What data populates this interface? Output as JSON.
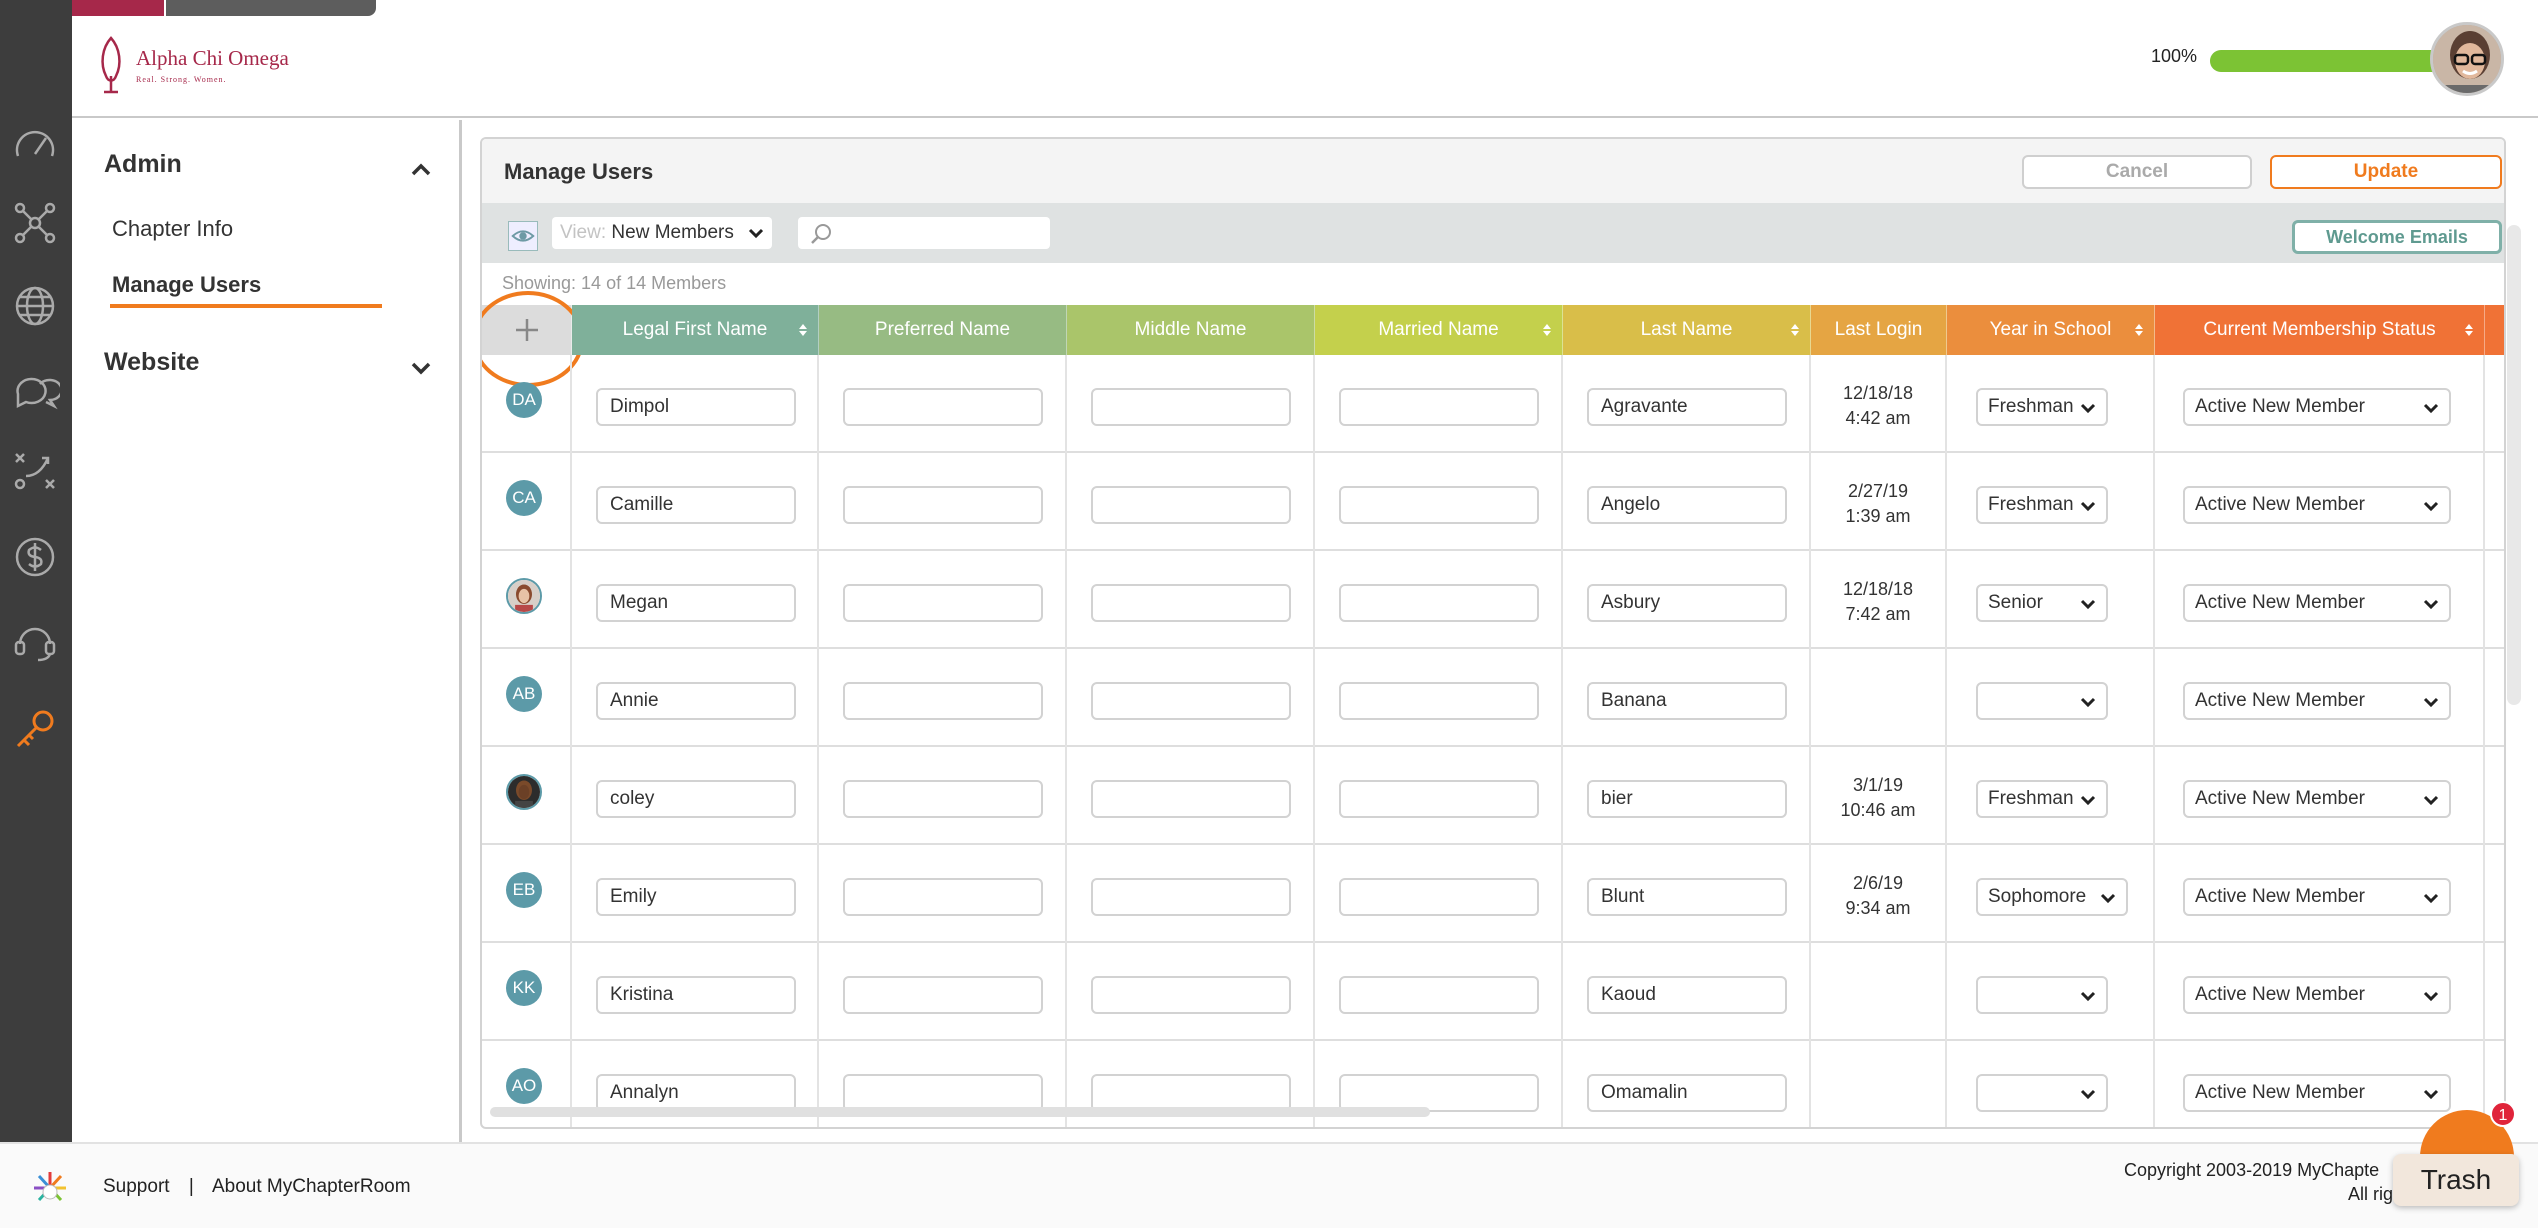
{
  "brand": {
    "name": "Alpha Chi Omega",
    "tagline": "Real. Strong. Women.",
    "primary_color": "#a6284a",
    "accent_color": "#f07b1e"
  },
  "header": {
    "progress_label": "100%",
    "progress_value": 1.0
  },
  "rail": {
    "icons": [
      "dashboard-icon",
      "network-icon",
      "globe-icon",
      "chat-icon",
      "strategy-icon",
      "dollar-icon",
      "support-icon",
      "key-icon"
    ],
    "active": "key-icon"
  },
  "sidebar": {
    "admin_label": "Admin",
    "admin_items": [
      {
        "label": "Chapter Info"
      },
      {
        "label": "Manage Users"
      }
    ],
    "website_label": "Website"
  },
  "panel": {
    "title": "Manage Users",
    "cancel_label": "Cancel",
    "update_label": "Update",
    "view_prefix": "View:",
    "view_value": "New Members",
    "search_value": "",
    "welcome_label": "Welcome Emails",
    "showing": "Showing: 14 of 14 Members"
  },
  "table": {
    "columns": [
      {
        "label": "Legal First Name",
        "color": "#7fb09a"
      },
      {
        "label": "Preferred Name",
        "color": "#97bb83"
      },
      {
        "label": "Middle Name",
        "color": "#aac56a"
      },
      {
        "label": "Married Name",
        "color": "#c4d04c"
      },
      {
        "label": "Last Name",
        "color": "#d9be49"
      },
      {
        "label": "Last Login",
        "color": "#e5a543"
      },
      {
        "label": "Year in School",
        "color": "#eb8e3d"
      },
      {
        "label": "Current Membership Status",
        "color": "#f07236"
      }
    ],
    "rows": [
      {
        "initials": "DA",
        "first": "Dimpol",
        "last": "Agravante",
        "login_date": "12/18/18",
        "login_time": "4:42 am",
        "year": "Freshman",
        "status": "Active New Member"
      },
      {
        "initials": "CA",
        "first": "Camille",
        "last": "Angelo",
        "login_date": "2/27/19",
        "login_time": "1:39 am",
        "year": "Freshman",
        "status": "Active New Member"
      },
      {
        "initials": "",
        "first": "Megan",
        "last": "Asbury",
        "login_date": "12/18/18",
        "login_time": "7:42 am",
        "year": "Senior",
        "status": "Active New Member"
      },
      {
        "initials": "AB",
        "first": "Annie",
        "last": "Banana",
        "login_date": "",
        "login_time": "",
        "year": "",
        "status": "Active New Member"
      },
      {
        "initials": "",
        "first": "coley",
        "last": "bier",
        "login_date": "3/1/19",
        "login_time": "10:46 am",
        "year": "Freshman",
        "status": "Active New Member"
      },
      {
        "initials": "EB",
        "first": "Emily",
        "last": "Blunt",
        "login_date": "2/6/19",
        "login_time": "9:34 am",
        "year": "Sophomore",
        "status": "Active New Member"
      },
      {
        "initials": "KK",
        "first": "Kristina",
        "last": "Kaoud",
        "login_date": "",
        "login_time": "",
        "year": "",
        "status": "Active New Member"
      },
      {
        "initials": "AO",
        "first": "Annalyn",
        "last": "Omamalin",
        "login_date": "",
        "login_time": "",
        "year": "",
        "status": "Active New Member"
      }
    ]
  },
  "footer": {
    "support": "Support",
    "separator": "|",
    "about": "About MyChapterRoom",
    "copyright": "Copyright 2003-2019 MyChapte",
    "rights": "All rig"
  },
  "chat": {
    "badge": "1",
    "trash_label": "Trash"
  }
}
